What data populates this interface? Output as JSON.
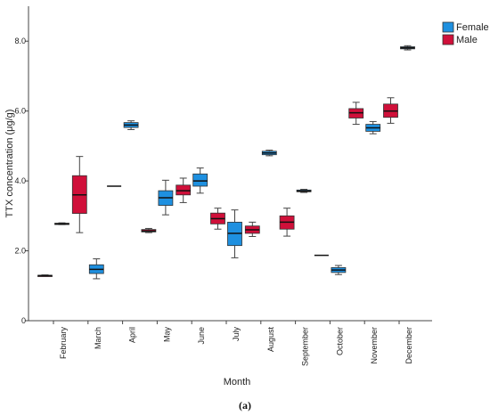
{
  "chart_data": {
    "type": "boxplot",
    "ylabel": "TTX concentration (μg/g)",
    "xlabel": "Month",
    "caption": "(a)",
    "ylim": [
      0,
      9
    ],
    "y_ticks": [
      0,
      2.0,
      4.0,
      6.0,
      8.0
    ],
    "y_tick_labels": [
      "0",
      "2.0",
      "4.0",
      "6.0",
      "8.0"
    ],
    "grid": false,
    "legend_position": "top-right",
    "categories": [
      "February",
      "March",
      "April",
      "May",
      "June",
      "July",
      "August",
      "September",
      "October",
      "November",
      "December"
    ],
    "series": [
      {
        "name": "Female",
        "color": "#1e90e0",
        "boxes": [
          {
            "min": 2.75,
            "q1": 2.76,
            "median": 2.77,
            "q3": 2.79,
            "max": 2.8
          },
          {
            "min": 1.2,
            "q1": 1.35,
            "median": 1.47,
            "q3": 1.6,
            "max": 1.77
          },
          {
            "min": 5.47,
            "q1": 5.53,
            "median": 5.6,
            "q3": 5.67,
            "max": 5.72
          },
          {
            "min": 3.03,
            "q1": 3.3,
            "median": 3.52,
            "q3": 3.72,
            "max": 4.02
          },
          {
            "min": 3.65,
            "q1": 3.85,
            "median": 4.0,
            "q3": 4.2,
            "max": 4.37
          },
          {
            "min": 1.8,
            "q1": 2.15,
            "median": 2.5,
            "q3": 2.82,
            "max": 3.17
          },
          {
            "min": 4.72,
            "q1": 4.75,
            "median": 4.8,
            "q3": 4.85,
            "max": 4.88
          },
          {
            "min": 3.67,
            "q1": 3.69,
            "median": 3.71,
            "q3": 3.74,
            "max": 3.76
          },
          {
            "min": 1.32,
            "q1": 1.38,
            "median": 1.45,
            "q3": 1.52,
            "max": 1.58
          },
          {
            "min": 5.35,
            "q1": 5.42,
            "median": 5.52,
            "q3": 5.62,
            "max": 5.7
          },
          {
            "min": 7.75,
            "q1": 7.78,
            "median": 7.81,
            "q3": 7.84,
            "max": 7.87
          }
        ]
      },
      {
        "name": "Male",
        "color": "#d0103a",
        "boxes": [
          {
            "min": 1.27,
            "q1": 1.28,
            "median": 1.29,
            "q3": 1.3,
            "max": 1.31
          },
          {
            "min": 2.52,
            "q1": 3.07,
            "median": 3.6,
            "q3": 4.15,
            "max": 4.7
          },
          {
            "min": 3.85,
            "q1": 3.85,
            "median": 3.85,
            "q3": 3.85,
            "max": 3.85
          },
          {
            "min": 2.52,
            "q1": 2.54,
            "median": 2.57,
            "q3": 2.61,
            "max": 2.64
          },
          {
            "min": 3.38,
            "q1": 3.6,
            "median": 3.72,
            "q3": 3.88,
            "max": 4.08
          },
          {
            "min": 2.62,
            "q1": 2.77,
            "median": 2.92,
            "q3": 3.08,
            "max": 3.22
          },
          {
            "min": 2.41,
            "q1": 2.5,
            "median": 2.6,
            "q3": 2.71,
            "max": 2.82
          },
          {
            "min": 2.42,
            "q1": 2.62,
            "median": 2.82,
            "q3": 3.0,
            "max": 3.22
          },
          {
            "min": 1.87,
            "q1": 1.87,
            "median": 1.87,
            "q3": 1.87,
            "max": 1.87
          },
          {
            "min": 5.62,
            "q1": 5.8,
            "median": 5.95,
            "q3": 6.07,
            "max": 6.25
          },
          {
            "min": 5.65,
            "q1": 5.82,
            "median": 6.0,
            "q3": 6.2,
            "max": 6.38
          }
        ]
      }
    ]
  }
}
